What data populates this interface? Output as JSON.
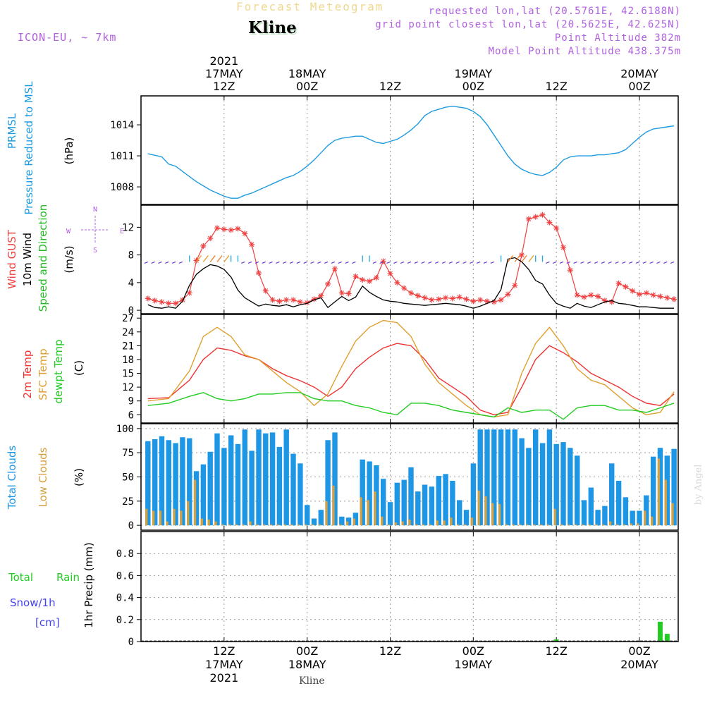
{
  "header": {
    "subtitle": "Forecast Meteogram",
    "location": "Kline",
    "model": "ICON-EU, ~ 7km",
    "requested": "requested lon,lat (20.5761E, 42.6188N)",
    "grid_point": "grid point closest lon,lat (20.5625E, 42.625N)",
    "point_altitude": "Point Altitude 382m",
    "model_altitude": "Model Point Altitude 438.375m",
    "footer_location": "Kline",
    "watermark": "by Angel"
  },
  "colors": {
    "pressure": "#1e9be0",
    "gust": "#f04040",
    "wind": "#000000",
    "direction": "#22bb22",
    "t2m": "#ee3333",
    "sfc": "#e0a030",
    "dew": "#22cc22",
    "total_clouds": "#1e96e6",
    "low_clouds": "#d4a040",
    "rain": "#22cc22",
    "snow": "#4444ee",
    "title": "#f0d890",
    "meta": "#b060e0"
  },
  "chart_data": [
    {
      "panel": "pressure",
      "type": "line",
      "ylabel_lines": [
        "PRMSL",
        "Pressure Reduced to MSL"
      ],
      "unit": "(hPa)",
      "ylim": [
        1006.3,
        1016.8
      ],
      "yticks": [
        1008,
        1011,
        1014
      ],
      "x_range_h": [
        0,
        76
      ],
      "series": [
        {
          "name": "PRMSL",
          "x": [
            0,
            2,
            3,
            4,
            5,
            6,
            7,
            8,
            9,
            10,
            11,
            12,
            13,
            14,
            15,
            16,
            17,
            18,
            19,
            20,
            21,
            22,
            23,
            24,
            25,
            26,
            27,
            28,
            29,
            30,
            31,
            32,
            33,
            34,
            35,
            36,
            37,
            38,
            39,
            40,
            41,
            42,
            43,
            44,
            45,
            46,
            47,
            48,
            49,
            50,
            51,
            52,
            53,
            54,
            55,
            56,
            57,
            58,
            59,
            60,
            61,
            62,
            63,
            64,
            65,
            66,
            67,
            68,
            69,
            70,
            71,
            72,
            73,
            74,
            75,
            76
          ],
          "values": [
            1011.2,
            1010.9,
            1010.2,
            1010.0,
            1009.5,
            1009.0,
            1008.5,
            1008.1,
            1007.7,
            1007.4,
            1007.1,
            1006.9,
            1006.9,
            1007.2,
            1007.4,
            1007.7,
            1008.0,
            1008.3,
            1008.6,
            1008.9,
            1009.1,
            1009.5,
            1010.0,
            1010.6,
            1011.3,
            1012.0,
            1012.5,
            1012.7,
            1012.8,
            1012.9,
            1012.9,
            1012.6,
            1012.3,
            1012.2,
            1012.4,
            1012.6,
            1013.0,
            1013.5,
            1014.1,
            1014.9,
            1015.3,
            1015.5,
            1015.7,
            1015.8,
            1015.7,
            1015.6,
            1015.3,
            1014.8,
            1014.0,
            1013.0,
            1012.0,
            1011.0,
            1010.2,
            1009.7,
            1009.4,
            1009.2,
            1009.1,
            1009.4,
            1009.9,
            1010.6,
            1010.9,
            1011.0,
            1011.0,
            1011.0,
            1011.1,
            1011.1,
            1011.2,
            1011.3,
            1011.6,
            1012.2,
            1012.8,
            1013.3,
            1013.6,
            1013.7,
            1013.8,
            1013.9
          ]
        }
      ]
    },
    {
      "panel": "wind",
      "type": "line",
      "ylabel_lines": [
        "Wind GUST",
        "10m Wind",
        "Speed and Direction"
      ],
      "unit": "(m/s)",
      "compass": {
        "north": "N",
        "south": "S",
        "east": "E",
        "west": "W"
      },
      "ylim": [
        -0.5,
        15.2
      ],
      "yticks": [
        0,
        4,
        8,
        12
      ],
      "x_range_h": [
        0,
        76
      ],
      "series": [
        {
          "name": "Wind GUST",
          "x": [
            0,
            1,
            2,
            3,
            4,
            5,
            6,
            7,
            8,
            9,
            10,
            11,
            12,
            13,
            14,
            15,
            16,
            17,
            18,
            19,
            20,
            21,
            22,
            23,
            24,
            25,
            26,
            27,
            28,
            29,
            30,
            31,
            32,
            33,
            34,
            35,
            36,
            37,
            38,
            39,
            40,
            41,
            42,
            43,
            44,
            45,
            46,
            47,
            48,
            49,
            50,
            51,
            52,
            53,
            54,
            55,
            56,
            57,
            58,
            59,
            60,
            61,
            62,
            63,
            64,
            65,
            66,
            67,
            68,
            69,
            70,
            71,
            72,
            73,
            74,
            75,
            76
          ],
          "values": [
            1.7,
            1.4,
            1.2,
            1.0,
            1.0,
            1.5,
            2.5,
            7.2,
            9.3,
            10.4,
            11.9,
            11.7,
            11.6,
            11.8,
            11.1,
            9.5,
            5.4,
            2.8,
            1.5,
            1.3,
            1.5,
            1.5,
            1.2,
            1.1,
            1.6,
            2.1,
            3.8,
            6.0,
            2.5,
            2.4,
            4.9,
            4.4,
            4.2,
            4.7,
            7.1,
            5.3,
            4.0,
            3.2,
            2.5,
            2.1,
            1.8,
            1.5,
            1.6,
            1.8,
            1.7,
            1.9,
            1.6,
            1.3,
            1.5,
            1.3,
            1.2,
            1.5,
            2.3,
            3.6,
            8.0,
            13.2,
            13.5,
            13.8,
            12.7,
            11.9,
            9.1,
            5.8,
            2.2,
            1.9,
            2.2,
            2.0,
            1.4,
            1.2,
            3.9,
            3.4,
            2.8,
            2.3,
            2.5,
            2.2,
            2.0,
            1.8,
            1.6
          ]
        },
        {
          "name": "10m Wind",
          "x": [
            0,
            1,
            2,
            3,
            4,
            5,
            6,
            7,
            8,
            9,
            10,
            11,
            12,
            13,
            14,
            15,
            16,
            17,
            18,
            19,
            20,
            21,
            22,
            23,
            24,
            25,
            26,
            27,
            28,
            29,
            30,
            31,
            32,
            33,
            34,
            35,
            36,
            37,
            38,
            39,
            40,
            41,
            42,
            43,
            44,
            45,
            46,
            47,
            48,
            49,
            50,
            51,
            52,
            53,
            54,
            55,
            56,
            57,
            58,
            59,
            60,
            61,
            62,
            63,
            64,
            65,
            66,
            67,
            68,
            69,
            70,
            71,
            72,
            73,
            74,
            75,
            76
          ],
          "values": [
            0.8,
            0.4,
            0.3,
            0.5,
            0.3,
            1.3,
            3.6,
            5.2,
            6.0,
            6.6,
            6.4,
            5.9,
            4.8,
            2.9,
            1.8,
            1.2,
            0.6,
            0.9,
            0.7,
            0.6,
            0.8,
            0.5,
            0.8,
            1.0,
            1.5,
            1.8,
            0.4,
            1.2,
            2.0,
            1.4,
            1.9,
            3.5,
            2.6,
            2.0,
            1.5,
            1.3,
            1.2,
            1.0,
            0.9,
            0.8,
            0.7,
            0.8,
            0.9,
            1.0,
            0.9,
            0.8,
            0.6,
            0.3,
            0.6,
            1.0,
            1.4,
            3.0,
            7.4,
            7.6,
            7.0,
            5.9,
            4.3,
            3.8,
            2.2,
            1.0,
            0.6,
            0.3,
            1.0,
            0.6,
            0.4,
            0.8,
            1.2,
            1.4,
            1.0,
            0.9,
            0.7,
            0.5,
            0.5,
            0.4,
            0.3,
            0.3,
            0.3
          ]
        }
      ]
    },
    {
      "panel": "temperature",
      "type": "line",
      "ylabel_lines": [
        "2m Temp",
        "SFC Temp",
        "dewpt Temp"
      ],
      "unit": "(C)",
      "ylim": [
        4.2,
        27.8
      ],
      "yticks": [
        6,
        9,
        12,
        15,
        18,
        21,
        24,
        27
      ],
      "x_range_h": [
        0,
        76
      ],
      "series": [
        {
          "name": "2m Temp",
          "x": [
            0,
            3,
            6,
            8,
            10,
            12,
            14,
            16,
            18,
            20,
            22,
            24,
            26,
            28,
            30,
            32,
            34,
            36,
            38,
            40,
            42,
            44,
            46,
            48,
            50,
            52,
            54,
            56,
            58,
            60,
            62,
            64,
            66,
            68,
            70,
            72,
            74,
            76
          ],
          "values": [
            9.5,
            9.7,
            13.5,
            18.0,
            20.5,
            20.0,
            18.8,
            18.0,
            16.0,
            14.5,
            13.4,
            12.0,
            10.0,
            12.0,
            16.0,
            18.5,
            20.5,
            21.5,
            21.0,
            18.0,
            14.0,
            12.0,
            10.0,
            7.0,
            6.0,
            6.5,
            12.0,
            18.0,
            21.0,
            19.5,
            17.5,
            15.0,
            13.5,
            12.0,
            10.0,
            8.5,
            8.0,
            10.5
          ]
        },
        {
          "name": "SFC Temp",
          "x": [
            0,
            3,
            6,
            8,
            10,
            12,
            14,
            16,
            18,
            20,
            22,
            24,
            26,
            28,
            30,
            32,
            34,
            36,
            38,
            40,
            42,
            44,
            46,
            48,
            50,
            52,
            54,
            56,
            58,
            60,
            62,
            64,
            66,
            68,
            70,
            72,
            74,
            76
          ],
          "values": [
            9.0,
            9.5,
            15.5,
            23.0,
            25.0,
            23.0,
            19.0,
            18.0,
            15.5,
            13.0,
            11.0,
            8.0,
            10.5,
            16.5,
            22.0,
            25.0,
            26.5,
            26.0,
            23.0,
            17.0,
            13.0,
            10.5,
            8.0,
            6.0,
            5.5,
            6.0,
            15.0,
            21.5,
            25.0,
            21.0,
            16.0,
            13.5,
            12.5,
            10.0,
            7.5,
            6.0,
            6.5,
            11.0
          ]
        },
        {
          "name": "dewpt Temp",
          "x": [
            0,
            3,
            6,
            8,
            10,
            12,
            14,
            16,
            18,
            20,
            22,
            24,
            26,
            28,
            30,
            32,
            34,
            36,
            38,
            40,
            42,
            44,
            46,
            48,
            50,
            52,
            54,
            56,
            58,
            60,
            62,
            64,
            66,
            68,
            70,
            72,
            74,
            76
          ],
          "values": [
            8.0,
            8.5,
            10.0,
            10.8,
            9.5,
            9.0,
            9.5,
            10.5,
            10.5,
            10.8,
            10.8,
            9.5,
            9.0,
            9.0,
            8.0,
            7.5,
            6.5,
            6.0,
            8.5,
            8.5,
            8.0,
            7.0,
            6.5,
            6.0,
            5.5,
            7.5,
            6.5,
            7.0,
            7.0,
            5.0,
            7.5,
            8.0,
            8.0,
            7.0,
            7.0,
            6.5,
            7.5,
            8.5
          ]
        }
      ]
    },
    {
      "panel": "clouds",
      "type": "bar",
      "ylabel_lines": [
        "Total Clouds",
        "Low Clouds"
      ],
      "unit": "(%)",
      "ylim": [
        -5,
        105
      ],
      "yticks": [
        0,
        25,
        50,
        75,
        100
      ],
      "x_range_h": [
        0,
        76
      ],
      "series": [
        {
          "name": "Total Clouds",
          "values": [
            87,
            89,
            92,
            88,
            85,
            91,
            90,
            56,
            63,
            76,
            95,
            80,
            93,
            84,
            99,
            77,
            99,
            95,
            96,
            81,
            99,
            74,
            64,
            21,
            7,
            16,
            88,
            96,
            9,
            8,
            13,
            68,
            66,
            62,
            48,
            24,
            44,
            47,
            60,
            35,
            42,
            40,
            51,
            53,
            46,
            26,
            16,
            64,
            99,
            99,
            99,
            99,
            99,
            99,
            90,
            80,
            99,
            85,
            99,
            84,
            86,
            80,
            72,
            26,
            39,
            16,
            20,
            64,
            46,
            29,
            15,
            15,
            31,
            71,
            80,
            72,
            79
          ]
        },
        {
          "name": "Low Clouds",
          "values": [
            17,
            15,
            15,
            4,
            17,
            15,
            25,
            47,
            7,
            6,
            4,
            1,
            1,
            1,
            1,
            4,
            1,
            1,
            1,
            1,
            1,
            1,
            1,
            1,
            1,
            1,
            25,
            41,
            1,
            4,
            7,
            29,
            26,
            35,
            9,
            1,
            3,
            4,
            6,
            1,
            1,
            1,
            5,
            5,
            8,
            1,
            1,
            8,
            36,
            30,
            23,
            22,
            1,
            1,
            1,
            1,
            1,
            1,
            1,
            17,
            1,
            1,
            1,
            1,
            1,
            1,
            1,
            4,
            1,
            1,
            2,
            2,
            15,
            9,
            69,
            47,
            23
          ]
        }
      ]
    },
    {
      "panel": "precip",
      "type": "bar",
      "ylabel_lines": [
        "1hr Precip (mm)"
      ],
      "left_labels": [
        "Total",
        "Rain",
        "Snow/1h",
        "[cm]"
      ],
      "ylim": [
        0,
        1.0
      ],
      "yticks": [
        0,
        0.2,
        0.4,
        0.6,
        0.8
      ],
      "ytick_labels": [
        "0",
        "0.2",
        "0.4",
        "0.6",
        "0.8"
      ],
      "x_range_h": [
        0,
        76
      ],
      "series": [
        {
          "name": "Rain",
          "x": [
            59,
            74,
            75
          ],
          "values": [
            0.02,
            0.18,
            0.07
          ]
        },
        {
          "name": "Snow/1h",
          "x": [],
          "values": []
        }
      ]
    }
  ],
  "time_axis": {
    "top_year": "2021",
    "bottom_year": "2021",
    "ticks": [
      {
        "h": 11,
        "label": "12Z",
        "date": "17MAY"
      },
      {
        "h": 23,
        "label": "00Z",
        "date": "18MAY"
      },
      {
        "h": 35,
        "label": "12Z",
        "date": ""
      },
      {
        "h": 47,
        "label": "00Z",
        "date": "19MAY"
      },
      {
        "h": 59,
        "label": "12Z",
        "date": ""
      },
      {
        "h": 71,
        "label": "00Z",
        "date": "20MAY"
      }
    ]
  }
}
